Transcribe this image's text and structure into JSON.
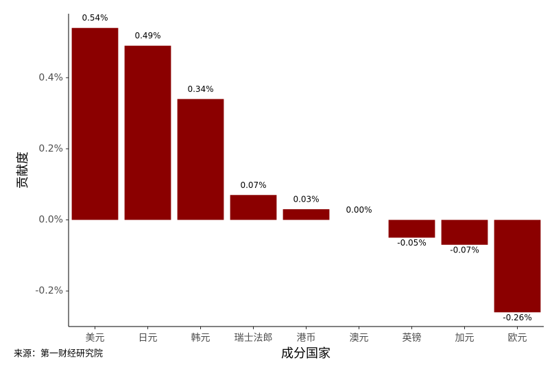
{
  "chart_data": {
    "type": "bar",
    "categories": [
      "美元",
      "日元",
      "韩元",
      "瑞士法郎",
      "港币",
      "澳元",
      "英镑",
      "加元",
      "欧元"
    ],
    "values": [
      0.54,
      0.49,
      0.34,
      0.07,
      0.03,
      0.0,
      -0.05,
      -0.07,
      -0.26
    ],
    "value_labels": [
      "0.54%",
      "0.49%",
      "0.34%",
      "0.07%",
      "0.03%",
      "0.00%",
      "-0.05%",
      "-0.07%",
      "-0.26%"
    ],
    "color": "#8b0000",
    "ylim": [
      -0.3,
      0.58
    ],
    "yticks": [
      {
        "value": -0.2,
        "label": "-0.2%"
      },
      {
        "value": 0,
        "label": "0.0%"
      },
      {
        "value": 0.2,
        "label": "0.2%"
      },
      {
        "value": 0.4,
        "label": "0.4%"
      }
    ],
    "x_label": "成分国家",
    "y_label": "贡献度",
    "note": "来源：第一财经研究院",
    "grid": false
  }
}
